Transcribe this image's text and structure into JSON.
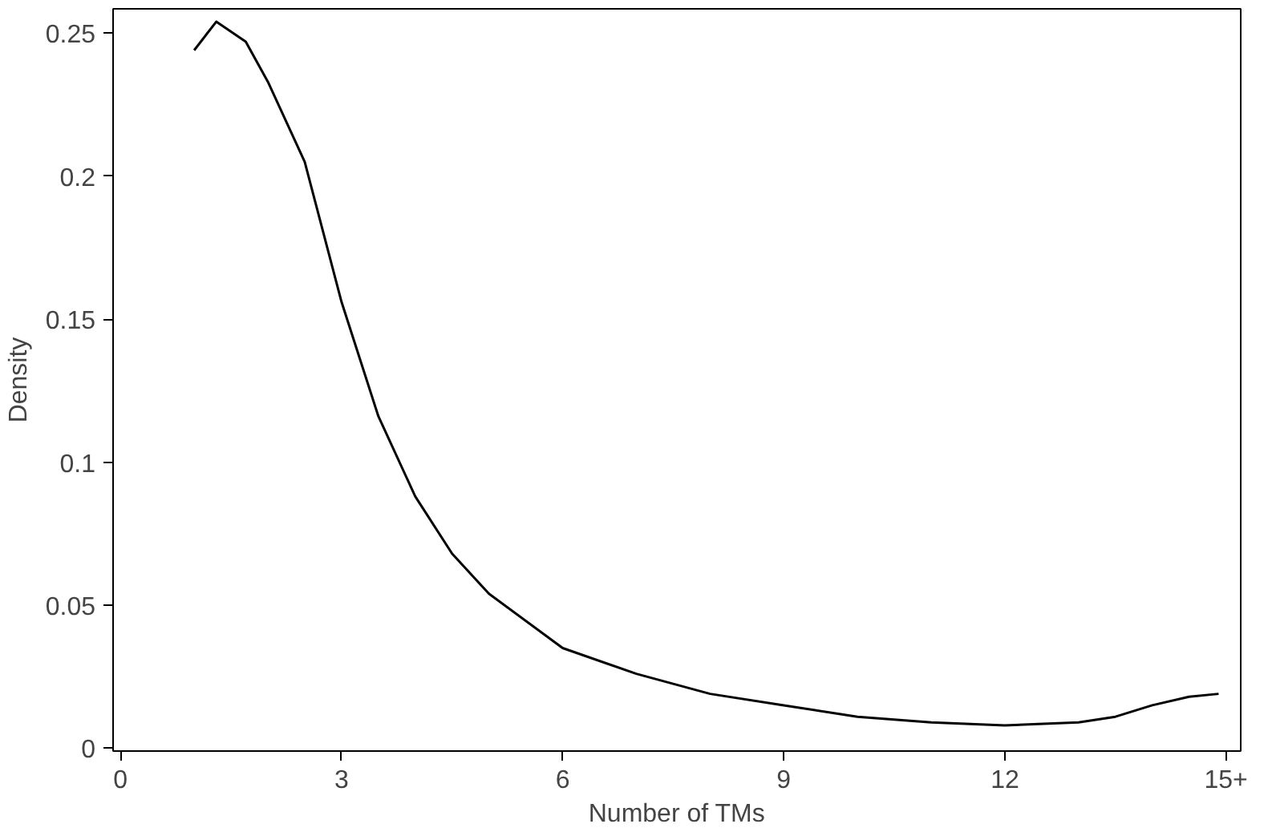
{
  "chart_data": {
    "type": "line",
    "xlabel": "Number of TMs",
    "ylabel": "Density",
    "x": [
      1,
      1.3,
      1.7,
      2,
      2.5,
      3,
      3.5,
      4,
      4.5,
      5,
      6,
      7,
      8,
      9,
      10,
      11,
      12,
      13,
      13.5,
      14,
      14.5,
      14.9
    ],
    "series": [
      {
        "color": "#000000",
        "values": [
          0.244,
          0.254,
          0.247,
          0.233,
          0.205,
          0.156,
          0.116,
          0.088,
          0.068,
          0.054,
          0.035,
          0.026,
          0.019,
          0.015,
          0.011,
          0.009,
          0.008,
          0.009,
          0.011,
          0.015,
          0.018,
          0.019
        ]
      }
    ],
    "xlim": [
      -0.1,
      15.2
    ],
    "ylim": [
      -0.001,
      0.2585
    ],
    "xticks": [
      0,
      3,
      6,
      9,
      12,
      {
        "value": 15,
        "label": "15+"
      }
    ],
    "yticks": [
      0,
      0.05,
      0.1,
      0.15,
      0.2,
      0.25
    ],
    "grid": false,
    "marker": "none",
    "line_style": "solid"
  }
}
